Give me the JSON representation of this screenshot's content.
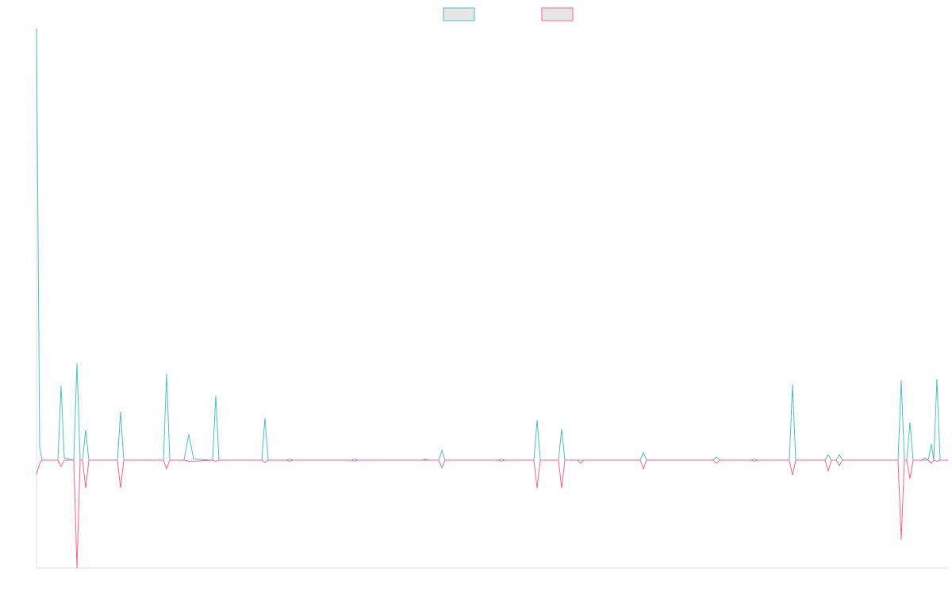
{
  "chart_data": {
    "type": "line",
    "xlim": [
      0,
      1149
    ],
    "ylim": [
      -1,
      4
    ],
    "x": [
      0,
      4,
      7,
      27,
      31,
      35,
      47,
      51,
      55,
      58,
      62,
      66,
      102,
      106,
      110,
      160,
      164,
      168,
      186,
      192,
      198,
      222,
      226,
      230,
      284,
      288,
      292,
      315,
      319,
      323,
      397,
      401,
      405,
      486,
      490,
      494,
      507,
      511,
      515,
      582,
      586,
      590,
      627,
      631,
      635,
      658,
      662,
      666,
      682,
      686,
      690,
      761,
      765,
      769,
      853,
      857,
      861,
      901,
      905,
      909,
      949,
      953,
      957,
      994,
      998,
      1002,
      1008,
      1012,
      1016,
      1086,
      1090,
      1094,
      1097,
      1101,
      1105,
      1116,
      1120,
      1124,
      1128,
      1131,
      1135,
      1139,
      1149
    ],
    "series": [
      {
        "color": "#4bc0c0",
        "values": [
          4,
          0.12,
          0,
          0,
          0.69,
          0.02,
          0,
          0.9,
          0,
          0,
          0.28,
          0,
          0,
          0.45,
          0,
          0,
          0.8,
          0,
          0,
          0.24,
          0.01,
          0,
          0.6,
          0,
          0,
          0.39,
          0,
          0,
          0.01,
          0,
          0,
          0.01,
          0,
          0,
          0.01,
          0,
          0,
          0.09,
          0,
          0,
          0.01,
          0,
          0,
          0.37,
          0,
          0,
          0.29,
          0,
          0,
          0,
          0,
          0,
          0.07,
          0,
          0,
          0.03,
          0,
          0,
          0.01,
          0,
          0,
          0.7,
          0,
          0,
          0.05,
          0,
          0,
          0.05,
          0,
          0,
          0.74,
          0,
          0,
          0.35,
          0,
          0,
          0.02,
          0,
          0.15,
          0,
          0.75,
          0,
          0
        ]
      },
      {
        "color": "#ff6384",
        "values": [
          -0.13,
          -0.03,
          0,
          0,
          -0.06,
          0,
          0,
          -1,
          0,
          0,
          -0.26,
          0,
          0,
          -0.26,
          0,
          0,
          -0.08,
          0,
          0,
          -0.01,
          -0.01,
          0,
          -0.01,
          0,
          0,
          -0.02,
          0,
          0,
          -0.01,
          0,
          0,
          -0.01,
          0,
          0,
          0,
          0,
          0,
          -0.07,
          0,
          0,
          -0.01,
          0,
          0,
          -0.26,
          0,
          0,
          -0.26,
          0,
          0,
          -0.03,
          0,
          0,
          -0.08,
          0,
          0,
          -0.03,
          0,
          0,
          -0.01,
          0,
          0,
          -0.14,
          0,
          0,
          -0.1,
          0,
          0,
          -0.05,
          0,
          0,
          -0.74,
          0,
          0,
          -0.17,
          0,
          0,
          0,
          0,
          -0.03,
          0,
          -0.01,
          0,
          0
        ]
      }
    ],
    "legend": "top"
  }
}
